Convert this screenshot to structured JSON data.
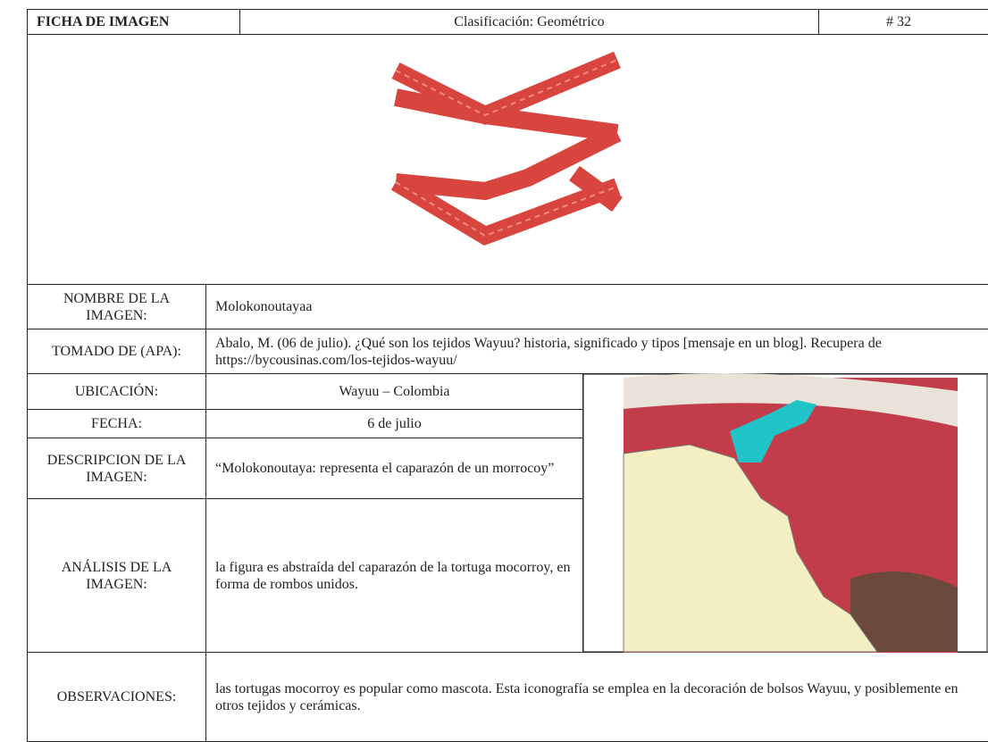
{
  "header": {
    "title": "FICHA DE IMAGEN",
    "classification": "Clasificación: Geométrico",
    "number": "# 32"
  },
  "rows": [
    {
      "label": "NOMBRE DE LA IMAGEN:",
      "value": "Molokonoutayaa"
    },
    {
      "label": "TOMADO DE (APA):",
      "value": "Abalo, M. (06 de julio). ¿Qué son los tejidos Wayuu? historia, significado y tipos [mensaje en un blog]. Recupera de https://bycousinas.com/los-tejidos-wayuu/"
    },
    {
      "label": "UBICACIÓN:",
      "value": "Wayuu – Colombia"
    },
    {
      "label": "FECHA:",
      "value": "6 de julio"
    },
    {
      "label": "DESCRIPCION DE LA IMAGEN:",
      "value": "“Molokonoutaya: representa el caparazón de un morrocoy”"
    },
    {
      "label": "ANÁLISIS DE LA IMAGEN:",
      "value": "la figura es abstraída del caparazón de la tortuga mocorroy, en forma de rombos unidos."
    },
    {
      "label": "OBSERVACIONES:",
      "value": "las tortugas mocorroy es popular como mascota. Esta iconografía se emplea en la decoración de bolsos Wayuu, y posiblemente en otros tejidos y cerámicas."
    }
  ]
}
